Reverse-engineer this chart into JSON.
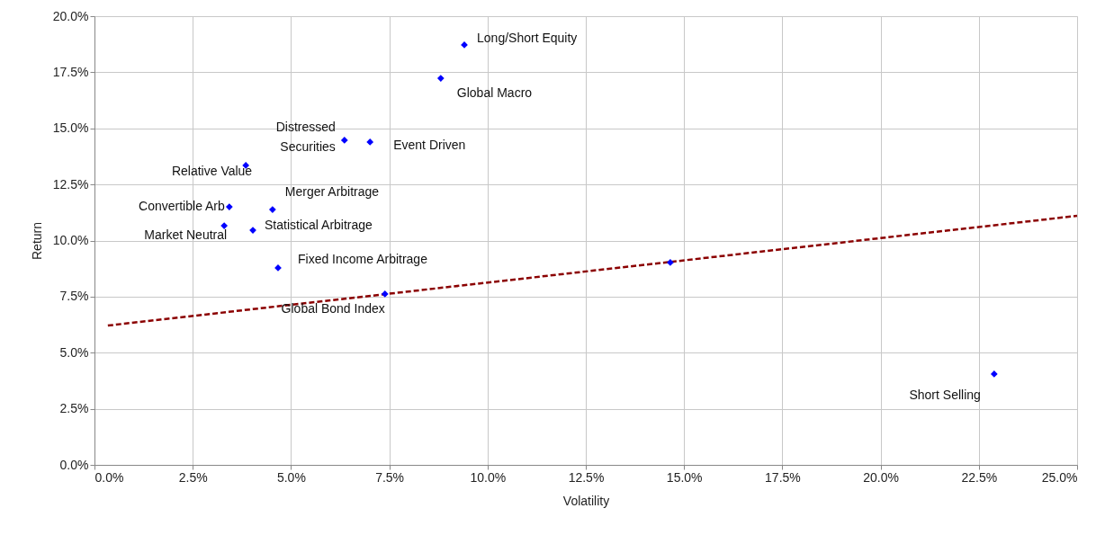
{
  "chart_data": {
    "type": "scatter",
    "xlabel": "Volatility",
    "ylabel": "Return",
    "xlim": [
      0,
      25
    ],
    "ylim": [
      0,
      20
    ],
    "xticks": [
      {
        "value": 0,
        "label": "0.0%"
      },
      {
        "value": 2.5,
        "label": "2.5%"
      },
      {
        "value": 5,
        "label": "5.0%"
      },
      {
        "value": 7.5,
        "label": "7.5%"
      },
      {
        "value": 10,
        "label": "10.0%"
      },
      {
        "value": 12.5,
        "label": "12.5%"
      },
      {
        "value": 15,
        "label": "15.0%"
      },
      {
        "value": 17.5,
        "label": "17.5%"
      },
      {
        "value": 20,
        "label": "20.0%"
      },
      {
        "value": 22.5,
        "label": "22.5%"
      },
      {
        "value": 25,
        "label": "25.0%"
      }
    ],
    "yticks": [
      {
        "value": 0,
        "label": "0.0%"
      },
      {
        "value": 2.5,
        "label": "2.5%"
      },
      {
        "value": 5,
        "label": "5.0%"
      },
      {
        "value": 7.5,
        "label": "7.5%"
      },
      {
        "value": 10,
        "label": "10.0%"
      },
      {
        "value": 12.5,
        "label": "12.5%"
      },
      {
        "value": 15,
        "label": "15.0%"
      },
      {
        "value": 17.5,
        "label": "17.5%"
      },
      {
        "value": 20,
        "label": "20.0%"
      }
    ],
    "grid": true,
    "series": [
      {
        "type": "scatter",
        "color": "#0000ff",
        "marker": "diamond",
        "x": [
          9.41,
          8.81,
          6.36,
          7.01,
          3.85,
          3.43,
          4.53,
          3.3,
          4.03,
          4.67,
          7.39,
          14.65,
          22.89
        ],
        "values": [
          18.72,
          17.23,
          14.47,
          14.39,
          13.35,
          11.5,
          11.38,
          10.66,
          10.46,
          8.78,
          7.62,
          9.02,
          4.05
        ]
      },
      {
        "type": "line",
        "color": "#8b0000",
        "line_style": "dashed",
        "marker": "none",
        "x": [
          0.34,
          25
        ],
        "values": [
          6.21,
          11.1
        ]
      }
    ],
    "annotations": [
      {
        "text": "Long/Short Equity",
        "x": 9.41,
        "y": 18.72
      },
      {
        "text": "Global Macro",
        "x": 8.81,
        "y": 17.23
      },
      {
        "text": "Distressed\nSecurities",
        "x": 6.36,
        "y": 14.47
      },
      {
        "text": "Event Driven",
        "x": 7.01,
        "y": 14.39
      },
      {
        "text": "Relative Value",
        "x": 3.85,
        "y": 13.35
      },
      {
        "text": "Convertible Arb",
        "x": 3.43,
        "y": 11.5
      },
      {
        "text": "Merger Arbitrage",
        "x": 4.53,
        "y": 11.38
      },
      {
        "text": "Market Neutral",
        "x": 3.3,
        "y": 10.66
      },
      {
        "text": "Statistical Arbitrage",
        "x": 4.03,
        "y": 10.46
      },
      {
        "text": "Fixed Income Arbitrage",
        "x": 4.67,
        "y": 8.78
      },
      {
        "text": "Global Bond Index",
        "x": 7.39,
        "y": 7.62
      },
      {
        "text": "Short Selling",
        "x": 22.89,
        "y": 4.05
      }
    ]
  }
}
